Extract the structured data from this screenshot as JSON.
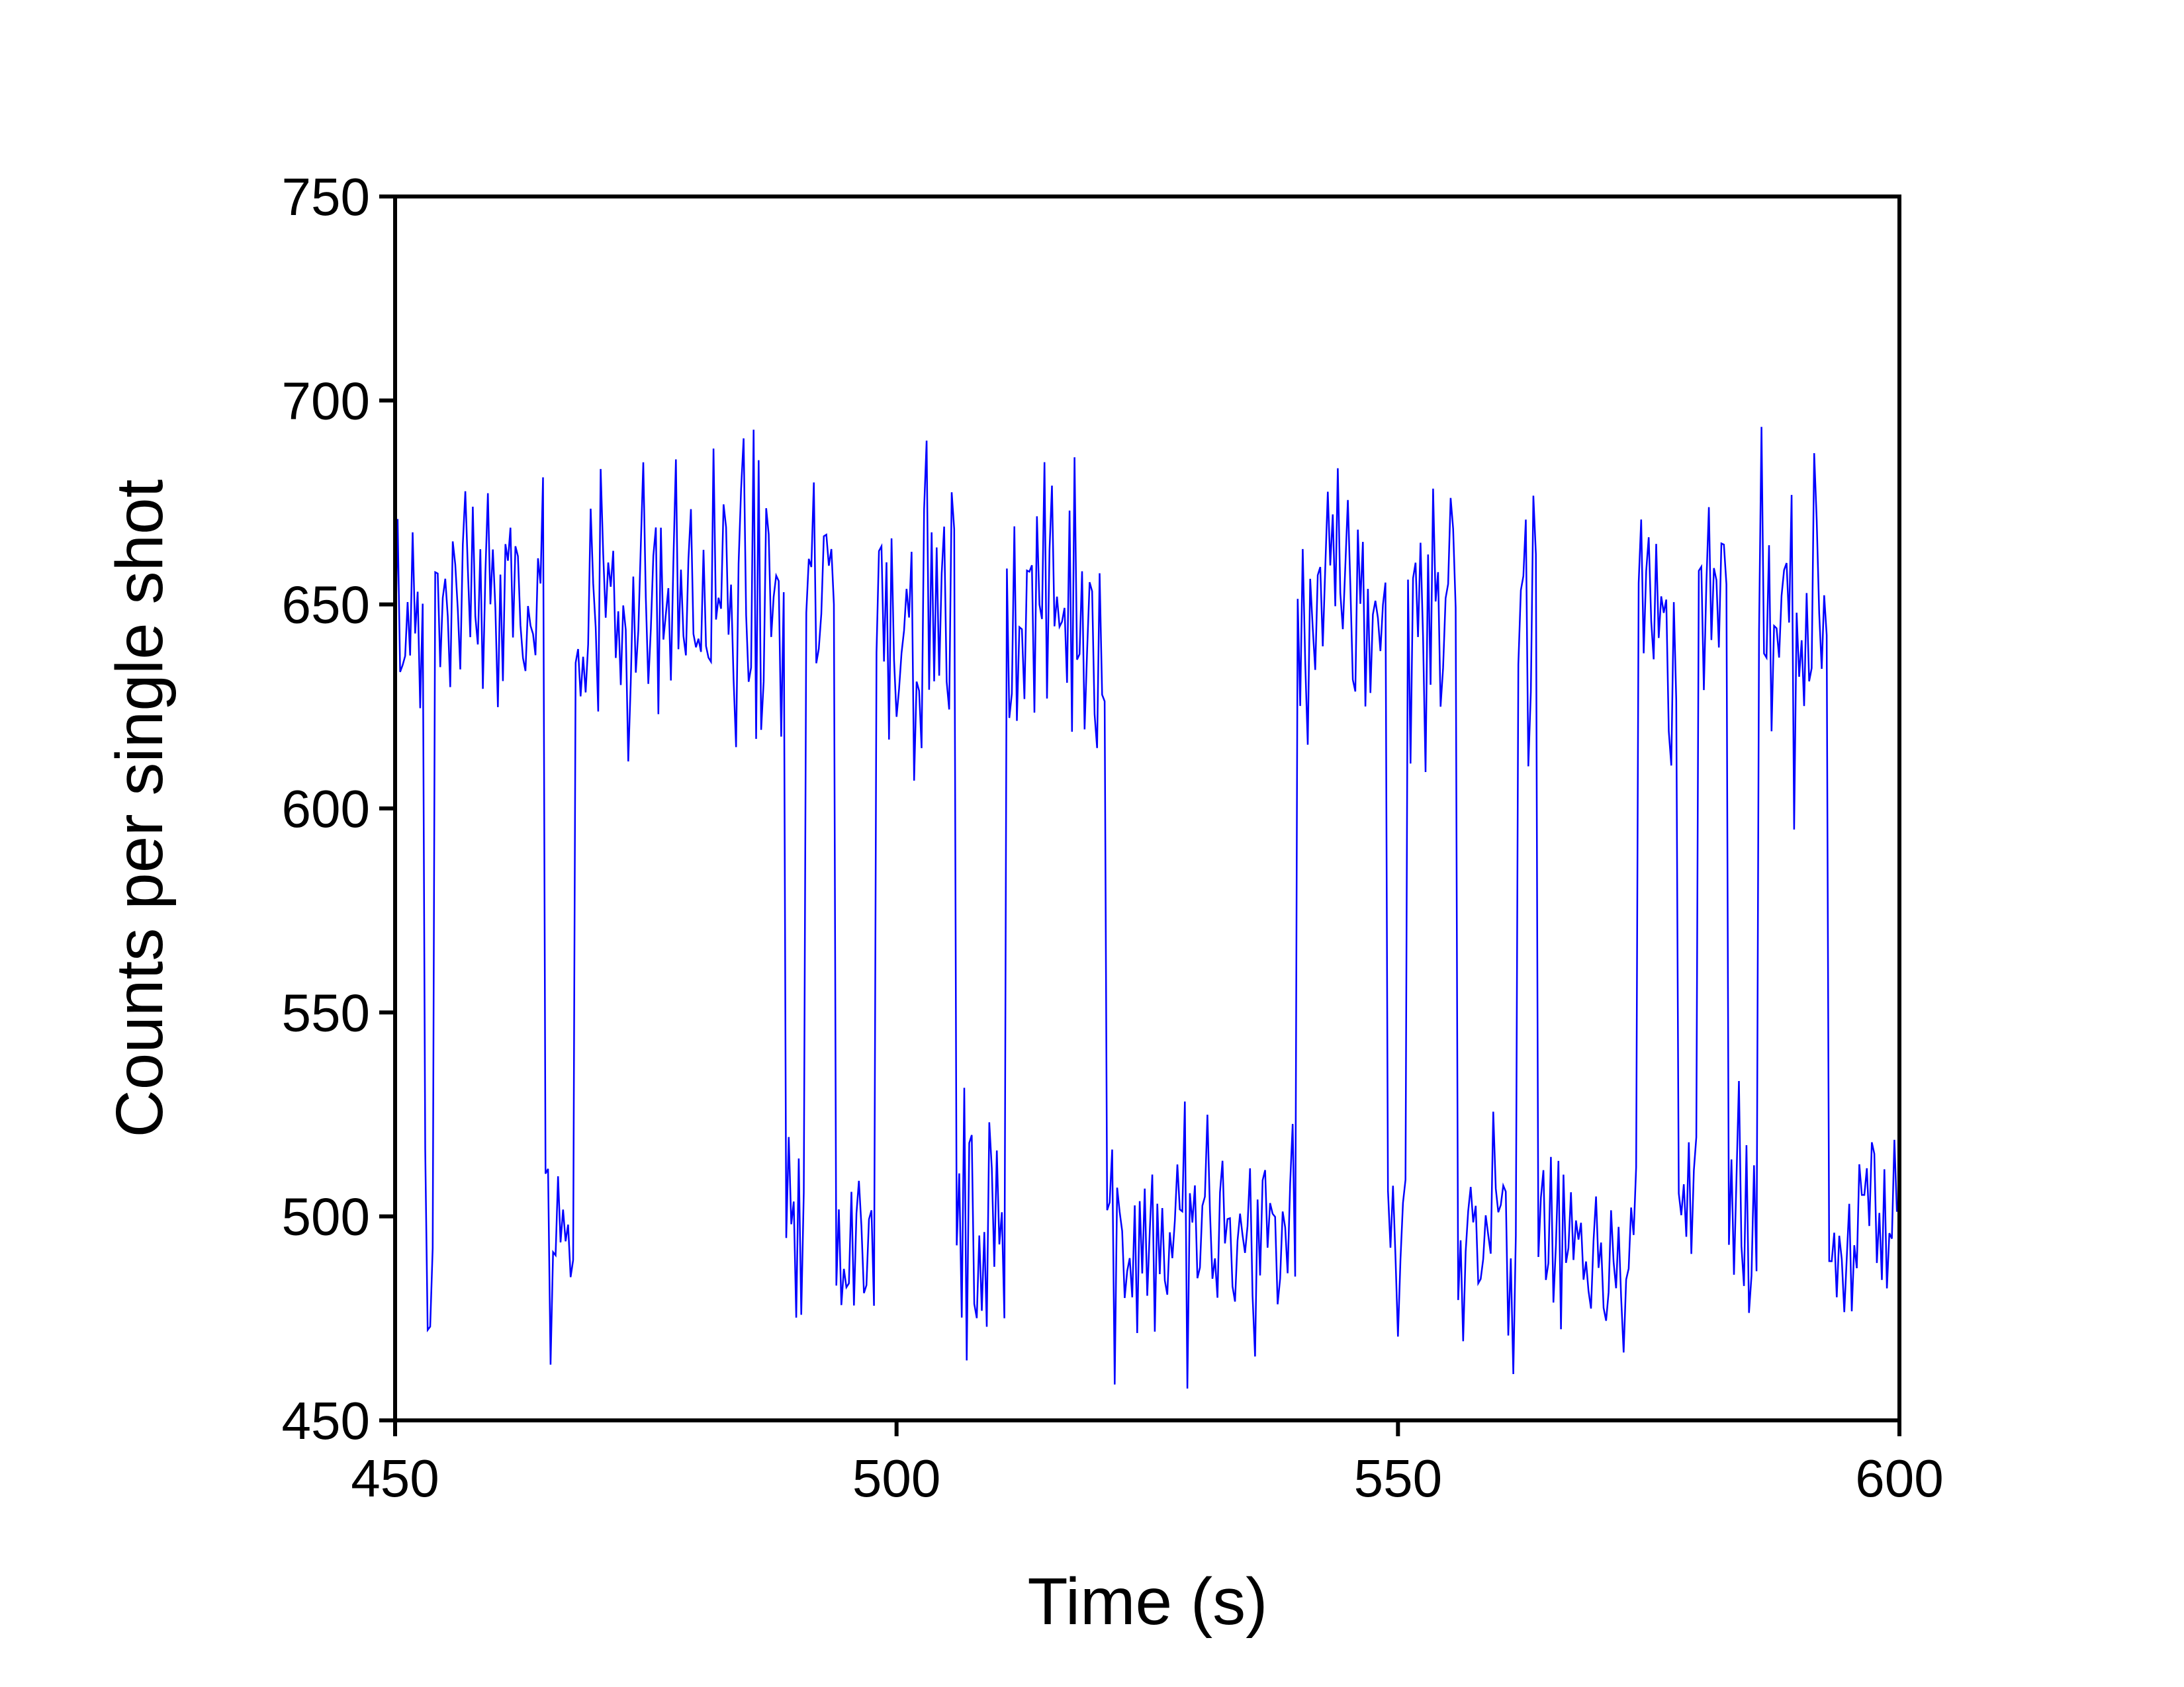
{
  "chart_data": {
    "type": "line",
    "title": "",
    "xlabel": "Time (s)",
    "ylabel": "Counts per single shot",
    "xlim": [
      450,
      600
    ],
    "ylim": [
      450,
      750
    ],
    "x_ticks": [
      450,
      500,
      550,
      600
    ],
    "y_ticks": [
      450,
      500,
      550,
      600,
      650,
      700,
      750
    ],
    "grid": false,
    "legend": "none",
    "series_color": "#0000ff",
    "sample_interval_s": 0.25,
    "series": [
      {
        "segments": [
          {
            "start": 450,
            "end": 453,
            "level": "high"
          },
          {
            "start": 453,
            "end": 454,
            "level": "low"
          },
          {
            "start": 454,
            "end": 465,
            "level": "high"
          },
          {
            "start": 465,
            "end": 468,
            "level": "low"
          },
          {
            "start": 468,
            "end": 489,
            "level": "high"
          },
          {
            "start": 489,
            "end": 491,
            "level": "low"
          },
          {
            "start": 491,
            "end": 494,
            "level": "high"
          },
          {
            "start": 494,
            "end": 498,
            "level": "low"
          },
          {
            "start": 498,
            "end": 506,
            "level": "high"
          },
          {
            "start": 506,
            "end": 511,
            "level": "low"
          },
          {
            "start": 511,
            "end": 521,
            "level": "high"
          },
          {
            "start": 521,
            "end": 540,
            "level": "low"
          },
          {
            "start": 540,
            "end": 549,
            "level": "high"
          },
          {
            "start": 549,
            "end": 551,
            "level": "low"
          },
          {
            "start": 551,
            "end": 556,
            "level": "high"
          },
          {
            "start": 556,
            "end": 562,
            "level": "low"
          },
          {
            "start": 562,
            "end": 564,
            "level": "high"
          },
          {
            "start": 564,
            "end": 574,
            "level": "low"
          },
          {
            "start": 574,
            "end": 578,
            "level": "high"
          },
          {
            "start": 578,
            "end": 580,
            "level": "low"
          },
          {
            "start": 580,
            "end": 583,
            "level": "high"
          },
          {
            "start": 583,
            "end": 586,
            "level": "low"
          },
          {
            "start": 586,
            "end": 593,
            "level": "high"
          },
          {
            "start": 593,
            "end": 600,
            "level": "low"
          }
        ],
        "level_means": {
          "high": 650,
          "low": 495
        },
        "level_spread": {
          "high": 30,
          "low": 25
        }
      }
    ]
  }
}
